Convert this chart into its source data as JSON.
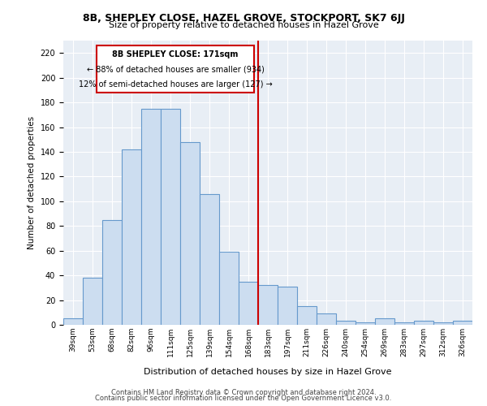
{
  "title": "8B, SHEPLEY CLOSE, HAZEL GROVE, STOCKPORT, SK7 6JJ",
  "subtitle": "Size of property relative to detached houses in Hazel Grove",
  "xlabel": "Distribution of detached houses by size in Hazel Grove",
  "ylabel": "Number of detached properties",
  "categories": [
    "39sqm",
    "53sqm",
    "68sqm",
    "82sqm",
    "96sqm",
    "111sqm",
    "125sqm",
    "139sqm",
    "154sqm",
    "168sqm",
    "183sqm",
    "197sqm",
    "211sqm",
    "226sqm",
    "240sqm",
    "254sqm",
    "269sqm",
    "283sqm",
    "297sqm",
    "312sqm",
    "326sqm"
  ],
  "values": [
    5,
    38,
    85,
    142,
    175,
    175,
    148,
    106,
    59,
    35,
    32,
    31,
    15,
    9,
    3,
    2,
    5,
    2,
    3,
    2,
    3
  ],
  "bar_color_fill": "#ccddf0",
  "bar_color_edge": "#6699cc",
  "bg_color": "#e8eef5",
  "grid_color": "#ffffff",
  "vline_color": "#cc0000",
  "annotation_title": "8B SHEPLEY CLOSE: 171sqm",
  "annotation_line1": "← 88% of detached houses are smaller (934)",
  "annotation_line2": "12% of semi-detached houses are larger (127) →",
  "annotation_box_color": "#cc0000",
  "ylim": [
    0,
    230
  ],
  "yticks": [
    0,
    20,
    40,
    60,
    80,
    100,
    120,
    140,
    160,
    180,
    200,
    220
  ],
  "footer1": "Contains HM Land Registry data © Crown copyright and database right 2024.",
  "footer2": "Contains public sector information licensed under the Open Government Licence v3.0."
}
